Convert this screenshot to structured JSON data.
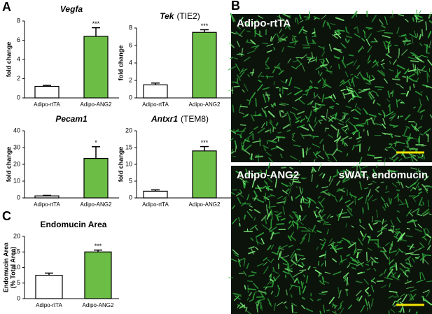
{
  "panel_labels": [
    "A",
    "B",
    "C"
  ],
  "chart_data": [
    {
      "type": "bar",
      "title": "Vegfa",
      "title_style": "italic",
      "ylabel": "fold change",
      "categories": [
        "Adipo-rtTA",
        "Adipo-ANG2"
      ],
      "values": [
        1.2,
        6.4
      ],
      "errors": [
        0.1,
        0.9
      ],
      "colors": [
        "#ffffff",
        "#6cbd45"
      ],
      "annotations": [
        null,
        "***"
      ],
      "ylim": [
        0,
        8
      ],
      "yticks": [
        0,
        2,
        4,
        6,
        8
      ]
    },
    {
      "type": "bar",
      "title": "Tek",
      "title_suffix": "(TIE2)",
      "title_style": "italic",
      "ylabel": "fold change",
      "categories": [
        "Adipo-rtTA",
        "Adipo-ANG2"
      ],
      "values": [
        1.5,
        7.5
      ],
      "errors": [
        0.2,
        0.3
      ],
      "colors": [
        "#ffffff",
        "#6cbd45"
      ],
      "annotations": [
        null,
        "***"
      ],
      "ylim": [
        0,
        8
      ],
      "yticks": [
        0,
        2,
        4,
        6,
        8
      ]
    },
    {
      "type": "bar",
      "title": "Pecam1",
      "title_style": "italic",
      "ylabel": "fold change",
      "categories": [
        "Adipo-rtTA",
        "Adipo-ANG2"
      ],
      "values": [
        1.2,
        23.5
      ],
      "errors": [
        0.3,
        7
      ],
      "colors": [
        "#ffffff",
        "#6cbd45"
      ],
      "annotations": [
        null,
        "*"
      ],
      "ylim": [
        0,
        40
      ],
      "yticks": [
        0,
        10,
        20,
        30,
        40
      ]
    },
    {
      "type": "bar",
      "title": "Antxr1",
      "title_suffix": "(TEM8)",
      "title_style": "italic",
      "ylabel": "fold change",
      "categories": [
        "Adipo-rtTA",
        "Adipo-ANG2"
      ],
      "values": [
        2,
        14
      ],
      "errors": [
        0.4,
        1.3
      ],
      "colors": [
        "#ffffff",
        "#6cbd45"
      ],
      "annotations": [
        null,
        "***"
      ],
      "ylim": [
        0,
        20
      ],
      "yticks": [
        0,
        5,
        10,
        15,
        20
      ]
    },
    {
      "type": "bar",
      "title": "Endomucin Area",
      "title_style": "normal",
      "ylabel": [
        "Endomucin Area",
        "(% Total Area)"
      ],
      "categories": [
        "Adipo-rtTA",
        "Adipo-ANG2"
      ],
      "values": [
        7.5,
        15
      ],
      "errors": [
        0.7,
        0.6
      ],
      "colors": [
        "#ffffff",
        "#6cbd45"
      ],
      "annotations": [
        null,
        "***"
      ],
      "ylim": [
        0,
        20
      ],
      "yticks": [
        0,
        5,
        10,
        15,
        20
      ]
    }
  ],
  "images": [
    {
      "label": "Adipo-rtTA"
    },
    {
      "label": "Adipo-ANG2",
      "caption": "sWAT, endomucin"
    }
  ]
}
